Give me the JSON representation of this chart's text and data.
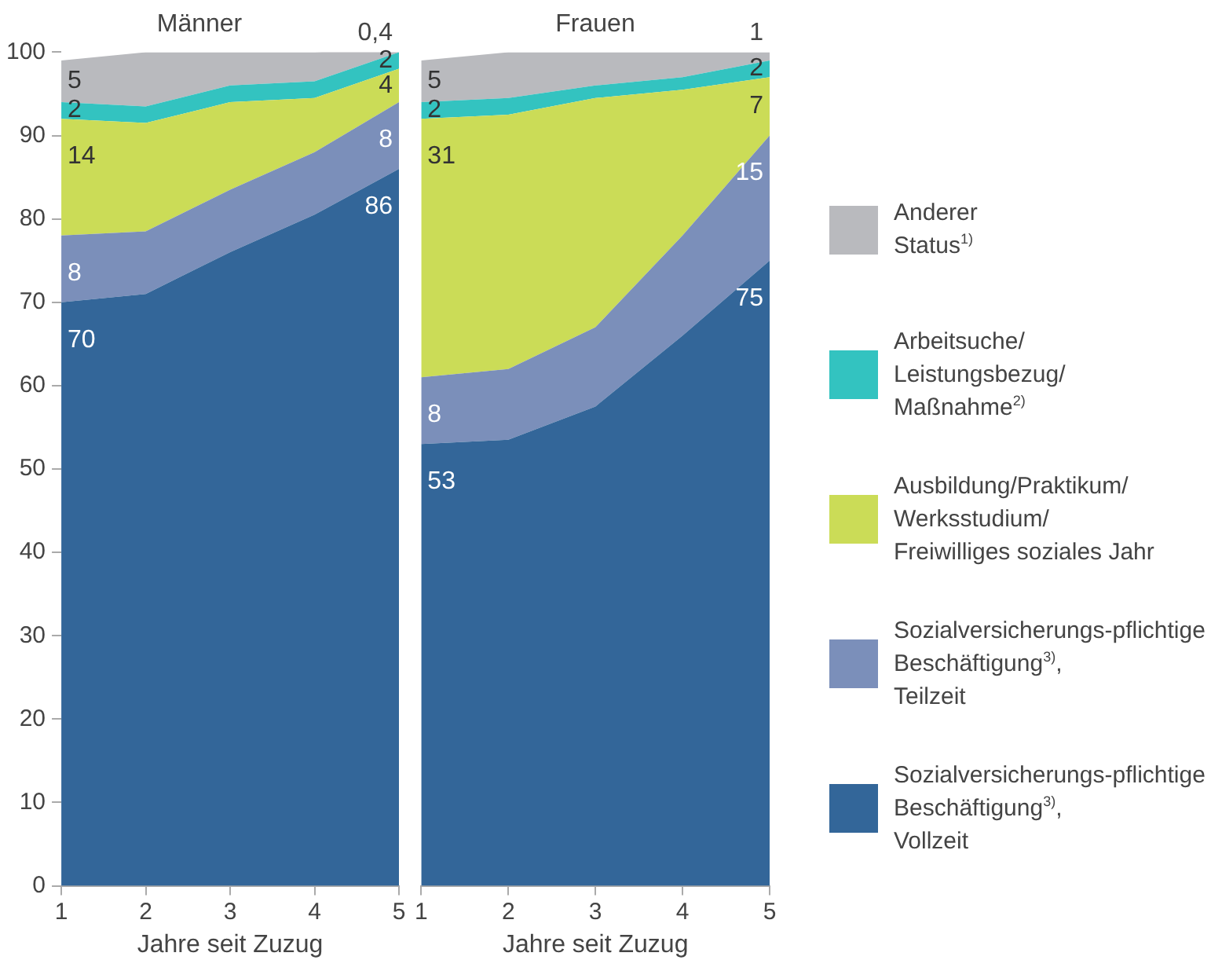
{
  "chart_data": [
    {
      "type": "area",
      "title": "Männer",
      "xlabel": "Jahre seit Zuzug",
      "x": [
        1,
        2,
        3,
        4,
        5
      ],
      "xlim": [
        1,
        5
      ],
      "xticks": [
        1,
        2,
        3,
        4,
        5
      ],
      "ylim": [
        0,
        100
      ],
      "yticks": [
        0,
        10,
        20,
        30,
        40,
        50,
        60,
        70,
        80,
        90,
        100
      ],
      "stacked": true,
      "grid": false,
      "series": [
        {
          "color": "#336699",
          "values": [
            70,
            71,
            76,
            80.5,
            86
          ],
          "value_labels": [
            "70",
            null,
            null,
            null,
            "86"
          ]
        },
        {
          "color": "#7b8fba",
          "values": [
            8,
            7.5,
            7.5,
            7.5,
            8
          ],
          "value_labels": [
            "8",
            null,
            null,
            null,
            "8"
          ]
        },
        {
          "color": "#cbdc57",
          "values": [
            14,
            13,
            10.5,
            6.5,
            4
          ],
          "value_labels": [
            "14",
            null,
            null,
            null,
            "4"
          ]
        },
        {
          "color": "#33c3c0",
          "values": [
            2,
            2,
            2,
            2,
            2
          ],
          "value_labels": [
            "2",
            null,
            null,
            null,
            "2"
          ]
        },
        {
          "color": "#b9babe",
          "values": [
            5,
            6.5,
            4,
            3.5,
            0.4
          ],
          "value_labels": [
            "5",
            null,
            null,
            null,
            "0,4"
          ]
        }
      ]
    },
    {
      "type": "area",
      "title": "Frauen",
      "xlabel": "Jahre seit Zuzug",
      "x": [
        1,
        2,
        3,
        4,
        5
      ],
      "xlim": [
        1,
        5
      ],
      "xticks": [
        1,
        2,
        3,
        4,
        5
      ],
      "ylim": [
        0,
        100
      ],
      "yticks": [
        0,
        10,
        20,
        30,
        40,
        50,
        60,
        70,
        80,
        90,
        100
      ],
      "tick_labels": "x",
      "stacked": true,
      "grid": false,
      "legend": "right",
      "series": [
        {
          "name": "Sozialversicherungs-pflichtige Beschäftigung$^{3)}$, Vollzeit",
          "color": "#336699",
          "values": [
            53,
            53.5,
            57.5,
            66,
            75
          ],
          "value_labels": [
            "53",
            null,
            null,
            null,
            "75"
          ]
        },
        {
          "name": "Sozialversicherungs-pflichtige Beschäftigung$^{3)}$, Teilzeit",
          "color": "#7b8fba",
          "values": [
            8,
            8.5,
            9.5,
            12,
            15
          ],
          "value_labels": [
            "8",
            null,
            null,
            null,
            "15"
          ]
        },
        {
          "name": "Ausbildung/Praktikum/ Werksstudium/ Freiwilliges soziales Jahr",
          "color": "#cbdc57",
          "values": [
            31,
            30.5,
            27.5,
            17.5,
            7
          ],
          "value_labels": [
            "31",
            null,
            null,
            null,
            "7"
          ]
        },
        {
          "name": "Arbeitsuche/ Leistungsbezug/ Maßnahme$^{2)}$",
          "color": "#33c3c0",
          "values": [
            2,
            2,
            1.5,
            1.5,
            2
          ],
          "value_labels": [
            "2",
            null,
            null,
            null,
            "2"
          ]
        },
        {
          "name": "Anderer Status$^{1)}$",
          "color": "#b9babe",
          "values": [
            5,
            5.5,
            4,
            3,
            1
          ],
          "value_labels": [
            "5",
            null,
            null,
            null,
            "1"
          ]
        }
      ]
    }
  ]
}
